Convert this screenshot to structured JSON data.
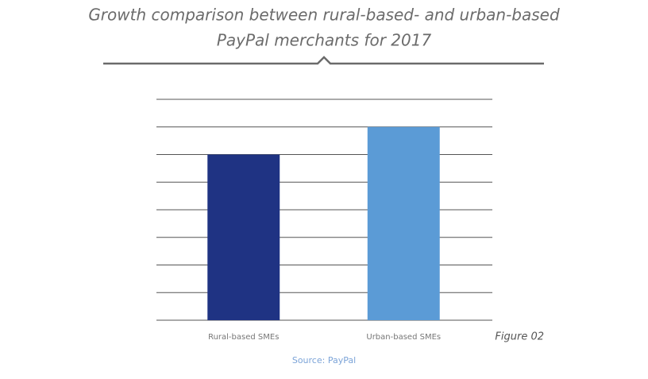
{
  "chart_data": {
    "type": "bar",
    "title": [
      "Growth comparison between rural-based- and urban-based",
      "PayPal merchants for 2017"
    ],
    "categories": [
      "Rural-based SMEs",
      "Urban-based SMEs"
    ],
    "values": [
      6,
      7
    ],
    "colors": [
      "#1f3383",
      "#5b9bd6"
    ],
    "ylim": [
      0,
      8
    ],
    "yticks": [
      0,
      1,
      2,
      3,
      4,
      5,
      6,
      7,
      8
    ],
    "grid": true,
    "annotation": "Figure 02",
    "source": "Source: PayPal"
  }
}
